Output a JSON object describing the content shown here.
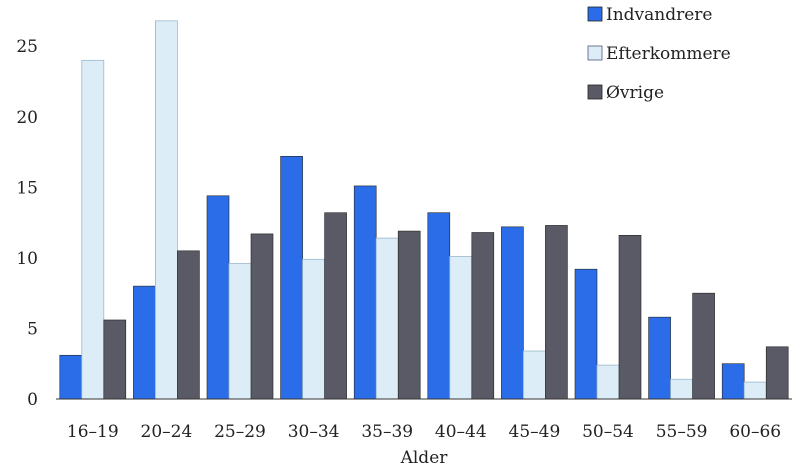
{
  "chart_data": {
    "type": "bar",
    "title": "",
    "xlabel": "Alder",
    "ylabel": "",
    "ylim": [
      0,
      27
    ],
    "yticks": [
      0,
      5,
      10,
      15,
      20,
      25
    ],
    "grid": false,
    "legend_position": "top-right",
    "categories": [
      "16–19",
      "20–24",
      "25–29",
      "30–34",
      "35–39",
      "40–44",
      "45–49",
      "50–54",
      "55–59",
      "60–66"
    ],
    "series": [
      {
        "name": "Indvandrere",
        "color": "#2b6de8",
        "values": [
          3.1,
          8.0,
          14.4,
          17.2,
          15.1,
          13.2,
          12.2,
          9.2,
          5.8,
          2.5
        ]
      },
      {
        "name": "Efterkommere",
        "color": "#dcedf8",
        "values": [
          24.0,
          26.8,
          9.6,
          9.9,
          11.4,
          10.1,
          3.4,
          2.4,
          1.4,
          1.2
        ]
      },
      {
        "name": "Øvrige",
        "color": "#5a5a66",
        "values": [
          5.6,
          10.5,
          11.7,
          13.2,
          11.9,
          11.8,
          12.3,
          11.6,
          7.5,
          3.7
        ]
      }
    ]
  }
}
